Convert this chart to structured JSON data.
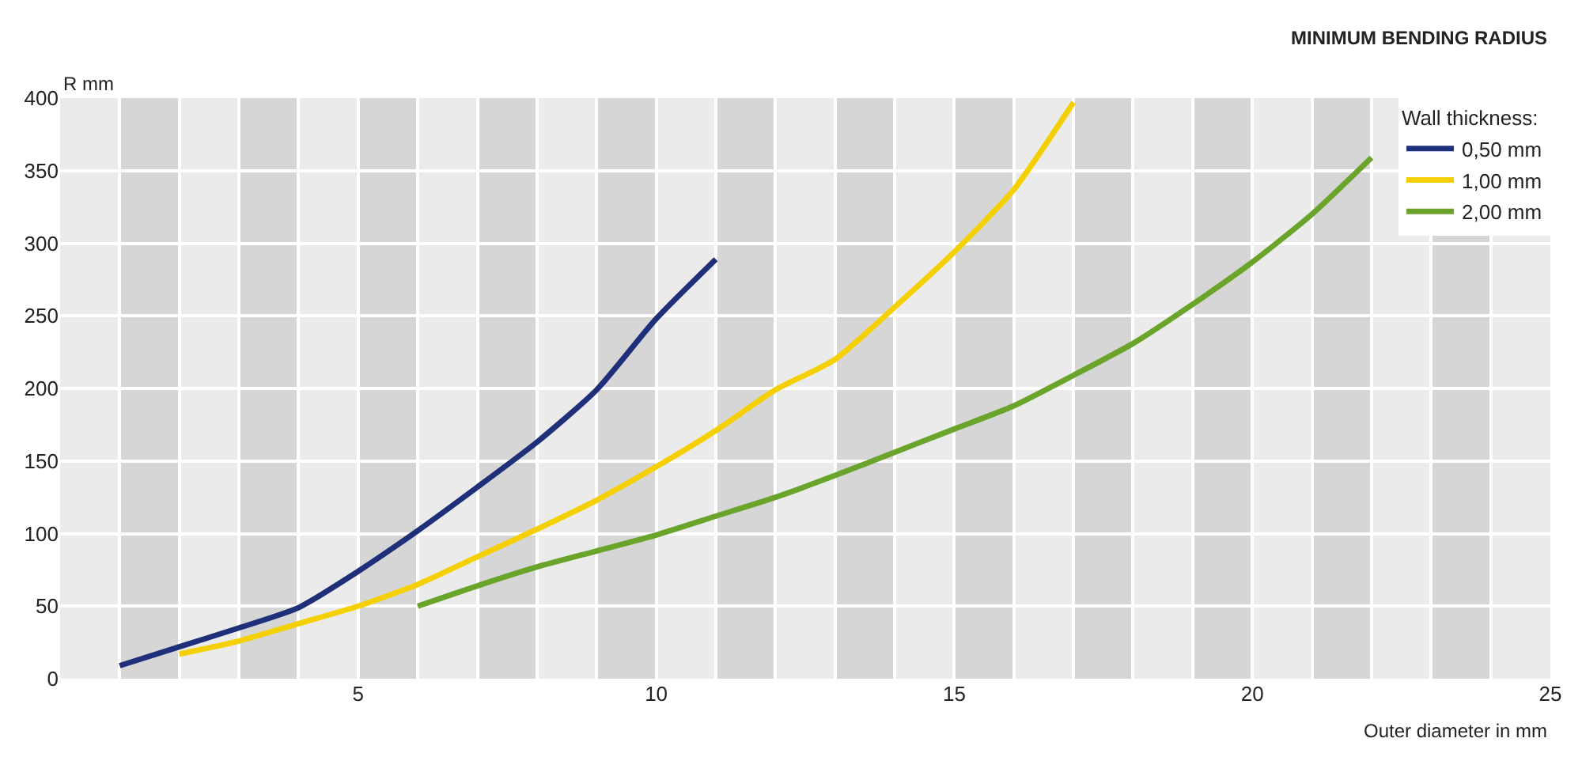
{
  "chart_data": {
    "type": "line",
    "title": "MINIMUM BENDING RADIUS",
    "ylabel": "R mm",
    "xlabel": "Outer diameter in mm",
    "legend_title": "Wall thickness:",
    "series": [
      {
        "name": "0,50 mm",
        "color": "#1f2f7a",
        "x": [
          1,
          2,
          3,
          4,
          5,
          6,
          7,
          8,
          9,
          10,
          11
        ],
        "values": [
          9,
          22,
          35,
          49,
          74,
          102,
          132,
          163,
          199,
          248,
          289
        ]
      },
      {
        "name": "1,00 mm",
        "color": "#f5d000",
        "x": [
          2,
          3,
          4,
          5,
          6,
          7,
          8,
          9,
          10,
          11,
          12,
          13,
          14,
          15,
          16,
          17
        ],
        "values": [
          17,
          26,
          38,
          50,
          65,
          84,
          103,
          123,
          146,
          171,
          199,
          220,
          256,
          294,
          337,
          397
        ]
      },
      {
        "name": "2,00 mm",
        "color": "#6aa42a",
        "x": [
          6,
          7,
          8,
          9,
          10,
          11,
          12,
          13,
          14,
          15,
          16,
          17,
          18,
          19,
          20,
          21,
          22
        ],
        "values": [
          50,
          64,
          77,
          88,
          99,
          112,
          125,
          140,
          156,
          172,
          188,
          209,
          231,
          258,
          287,
          320,
          359
        ]
      }
    ],
    "xlim": [
      0,
      25
    ],
    "xticks": [
      5,
      10,
      15,
      20,
      25
    ],
    "ylim": [
      0,
      400
    ],
    "yticks": [
      0,
      50,
      100,
      150,
      200,
      250,
      300,
      350,
      400
    ],
    "bands": [
      {
        "axis": "x",
        "from": 1,
        "to": 2,
        "color": "#d6d6d6"
      },
      {
        "axis": "x",
        "from": 3,
        "to": 4,
        "color": "#d6d6d6"
      },
      {
        "axis": "x",
        "from": 5,
        "to": 6,
        "color": "#d6d6d6"
      },
      {
        "axis": "x",
        "from": 7,
        "to": 8,
        "color": "#d6d6d6"
      },
      {
        "axis": "x",
        "from": 9,
        "to": 10,
        "color": "#d6d6d6"
      },
      {
        "axis": "x",
        "from": 11,
        "to": 12,
        "color": "#d6d6d6"
      },
      {
        "axis": "x",
        "from": 13,
        "to": 14,
        "color": "#d6d6d6"
      },
      {
        "axis": "x",
        "from": 15,
        "to": 16,
        "color": "#d6d6d6"
      },
      {
        "axis": "x",
        "from": 17,
        "to": 18,
        "color": "#d6d6d6"
      },
      {
        "axis": "x",
        "from": 19,
        "to": 20,
        "color": "#d6d6d6"
      },
      {
        "axis": "x",
        "from": 21,
        "to": 22,
        "color": "#d6d6d6"
      },
      {
        "axis": "x",
        "from": 23,
        "to": 24,
        "color": "#d6d6d6"
      }
    ],
    "grid": true,
    "legend": "top right",
    "marker": "none",
    "line_style": "solid"
  }
}
